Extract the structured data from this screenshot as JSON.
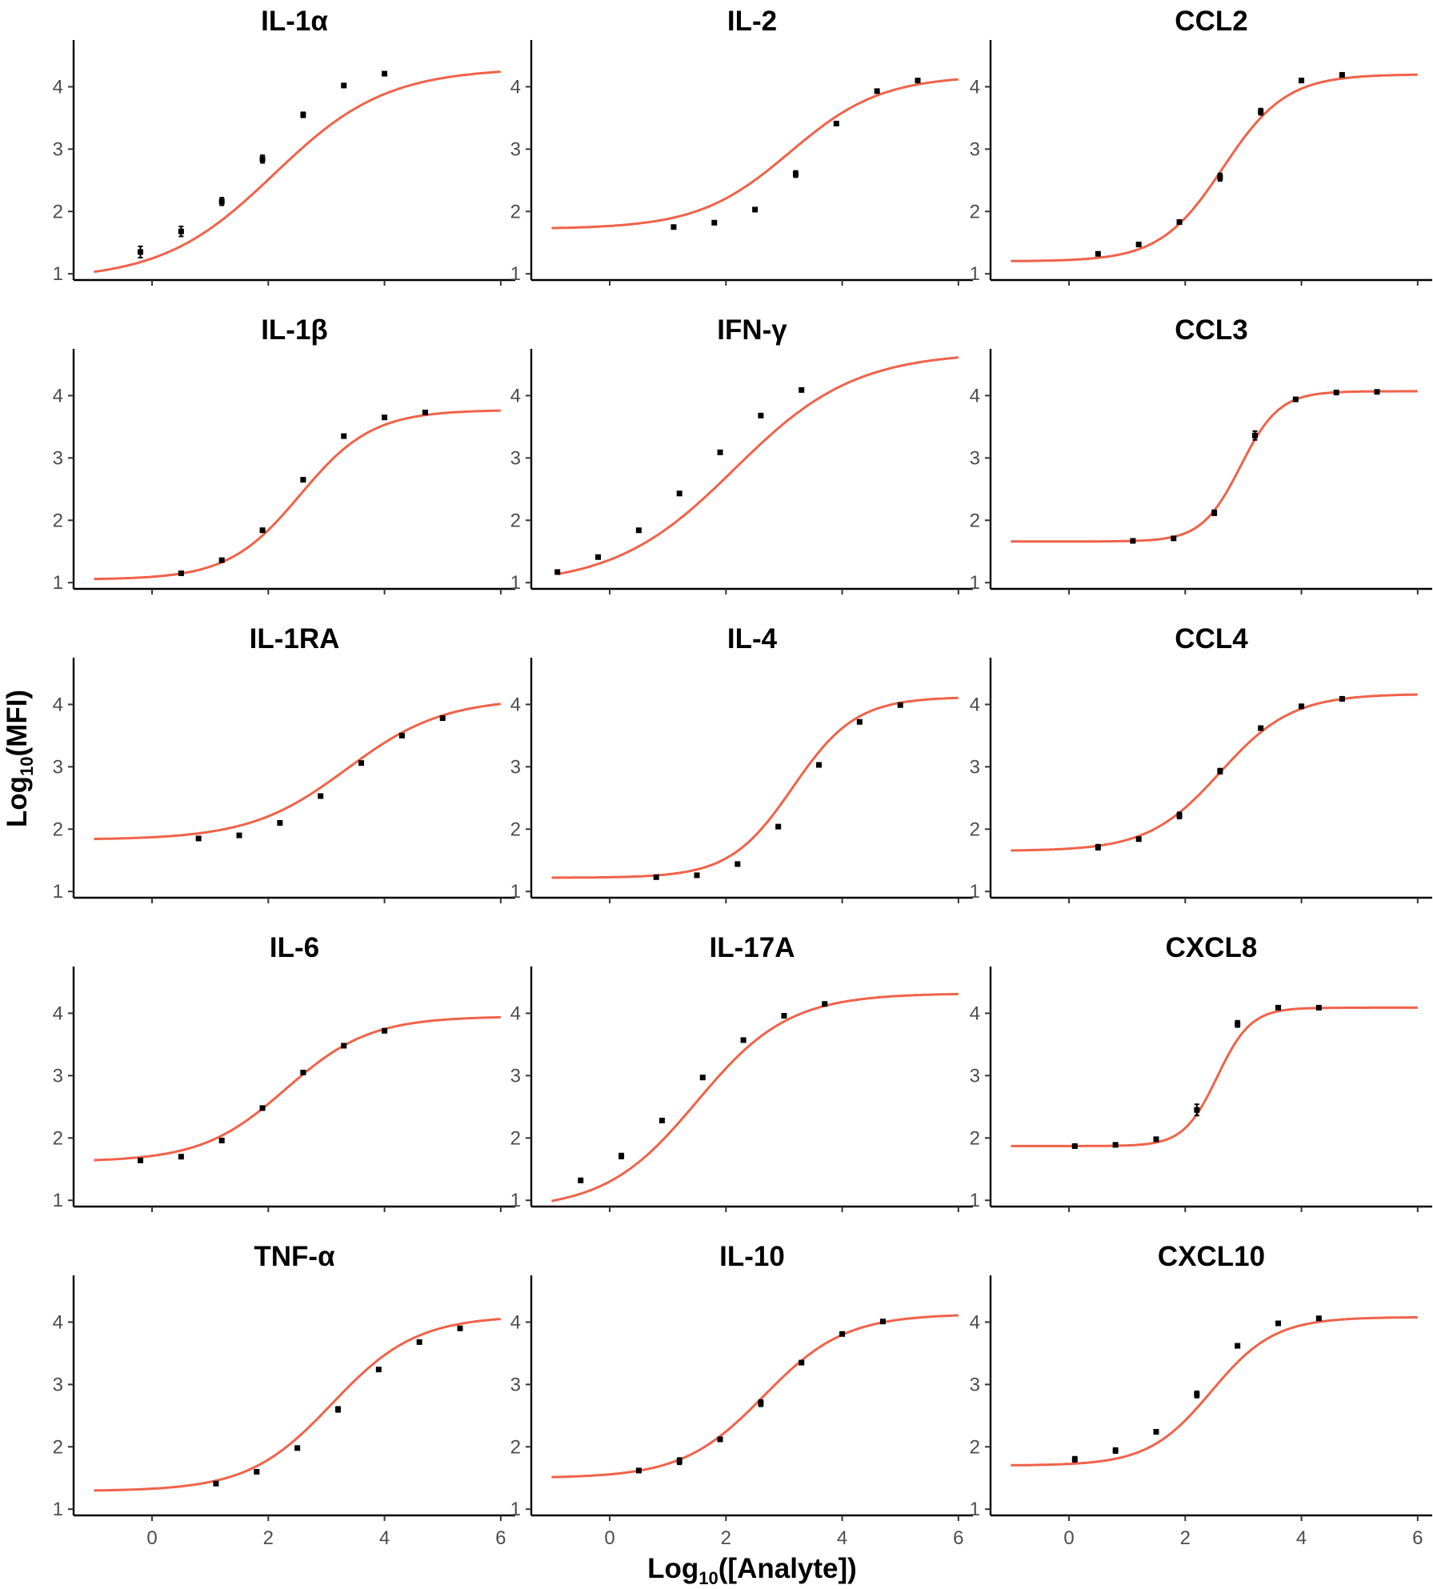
{
  "chart_data": {
    "type": "line",
    "layout": "facet grid, 5 rows x 3 columns",
    "xlabel_main": "Log",
    "xlabel_sub": "10",
    "xlabel_rest": "([Analyte])",
    "ylabel_main": "Log",
    "ylabel_sub": "10",
    "ylabel_rest": "(MFI)",
    "xlim": [
      -1.35,
      6.25
    ],
    "ylim": [
      0.9,
      4.75
    ],
    "x_ticks": [
      0,
      2,
      4,
      6
    ],
    "x_tick_labels": [
      "0",
      "2",
      "4",
      "6"
    ],
    "y_ticks": [
      1,
      2,
      3,
      4
    ],
    "y_tick_labels": [
      "1",
      "2",
      "3",
      "4"
    ],
    "line_color": "#f0624a",
    "point_color": "#000000",
    "panels": [
      {
        "title": "IL-1α",
        "fit": {
          "bottom": 0.9,
          "top": 4.3,
          "ec50": 2.1,
          "hill": 0.45,
          "x_start": -1.0,
          "x_end": 6.0
        },
        "points": [
          {
            "x": -0.2,
            "y": 1.35,
            "err": 0.09
          },
          {
            "x": 0.5,
            "y": 1.68,
            "err": 0.08
          },
          {
            "x": 1.2,
            "y": 2.16,
            "err": 0.06
          },
          {
            "x": 1.9,
            "y": 2.84,
            "err": 0.06
          },
          {
            "x": 2.6,
            "y": 3.55,
            "err": 0.04
          },
          {
            "x": 3.3,
            "y": 4.02,
            "err": 0.02
          },
          {
            "x": 4.0,
            "y": 4.21,
            "err": 0.02
          }
        ]
      },
      {
        "title": "IL-2",
        "fit": {
          "bottom": 1.72,
          "top": 4.18,
          "ec50": 3.1,
          "hill": 0.55,
          "x_start": -1.0,
          "x_end": 6.0
        },
        "points": [
          {
            "x": 1.1,
            "y": 1.75,
            "err": 0.02
          },
          {
            "x": 1.8,
            "y": 1.82,
            "err": 0.03
          },
          {
            "x": 2.5,
            "y": 2.03,
            "err": 0.03
          },
          {
            "x": 3.2,
            "y": 2.6,
            "err": 0.05
          },
          {
            "x": 3.9,
            "y": 3.41,
            "err": 0.03
          },
          {
            "x": 4.6,
            "y": 3.93,
            "err": 0.02
          },
          {
            "x": 5.3,
            "y": 4.1,
            "err": 0.02
          }
        ]
      },
      {
        "title": "CCL2",
        "fit": {
          "bottom": 1.2,
          "top": 4.2,
          "ec50": 2.65,
          "hill": 0.8,
          "x_start": -1.0,
          "x_end": 6.0
        },
        "points": [
          {
            "x": 0.5,
            "y": 1.32,
            "err": 0.02
          },
          {
            "x": 1.2,
            "y": 1.47,
            "err": 0.02
          },
          {
            "x": 1.9,
            "y": 1.83,
            "err": 0.03
          },
          {
            "x": 2.6,
            "y": 2.55,
            "err": 0.06
          },
          {
            "x": 3.3,
            "y": 3.6,
            "err": 0.05
          },
          {
            "x": 4.0,
            "y": 4.1,
            "err": 0.02
          },
          {
            "x": 4.7,
            "y": 4.19,
            "err": 0.03
          }
        ]
      },
      {
        "title": "IL-1β",
        "fit": {
          "bottom": 1.05,
          "top": 3.77,
          "ec50": 2.55,
          "hill": 0.7,
          "x_start": -1.0,
          "x_end": 6.0
        },
        "points": [
          {
            "x": 0.5,
            "y": 1.15,
            "err": 0.02
          },
          {
            "x": 1.2,
            "y": 1.36,
            "err": 0.02
          },
          {
            "x": 1.9,
            "y": 1.84,
            "err": 0.03
          },
          {
            "x": 2.6,
            "y": 2.65,
            "err": 0.03
          },
          {
            "x": 3.3,
            "y": 3.35,
            "err": 0.02
          },
          {
            "x": 4.0,
            "y": 3.65,
            "err": 0.02
          },
          {
            "x": 4.7,
            "y": 3.73,
            "err": 0.03
          }
        ]
      },
      {
        "title": "IFN-γ",
        "fit": {
          "bottom": 0.95,
          "top": 4.7,
          "ec50": 2.15,
          "hill": 0.42,
          "x_start": -0.9,
          "x_end": 6.0
        },
        "points": [
          {
            "x": -0.9,
            "y": 1.17,
            "err": 0.02
          },
          {
            "x": -0.2,
            "y": 1.41,
            "err": 0.02
          },
          {
            "x": 0.5,
            "y": 1.84,
            "err": 0.02
          },
          {
            "x": 1.2,
            "y": 2.43,
            "err": 0.03
          },
          {
            "x": 1.9,
            "y": 3.09,
            "err": 0.02
          },
          {
            "x": 2.6,
            "y": 3.68,
            "err": 0.02
          },
          {
            "x": 3.3,
            "y": 4.09,
            "err": 0.02
          }
        ]
      },
      {
        "title": "CCL3",
        "fit": {
          "bottom": 1.66,
          "top": 4.07,
          "ec50": 2.95,
          "hill": 1.3,
          "x_start": -1.0,
          "x_end": 6.0
        },
        "points": [
          {
            "x": 1.1,
            "y": 1.67,
            "err": 0.02
          },
          {
            "x": 1.8,
            "y": 1.71,
            "err": 0.02
          },
          {
            "x": 2.5,
            "y": 2.12,
            "err": 0.04
          },
          {
            "x": 3.2,
            "y": 3.36,
            "err": 0.07
          },
          {
            "x": 3.9,
            "y": 3.94,
            "err": 0.02
          },
          {
            "x": 4.6,
            "y": 4.05,
            "err": 0.02
          },
          {
            "x": 5.3,
            "y": 4.06,
            "err": 0.02
          }
        ]
      },
      {
        "title": "IL-1RA",
        "fit": {
          "bottom": 1.83,
          "top": 4.1,
          "ec50": 3.35,
          "hill": 0.52,
          "x_start": -1.0,
          "x_end": 6.0
        },
        "points": [
          {
            "x": 0.8,
            "y": 1.85,
            "err": 0.02
          },
          {
            "x": 1.5,
            "y": 1.9,
            "err": 0.03
          },
          {
            "x": 2.2,
            "y": 2.1,
            "err": 0.02
          },
          {
            "x": 2.9,
            "y": 2.53,
            "err": 0.03
          },
          {
            "x": 3.6,
            "y": 3.06,
            "err": 0.02
          },
          {
            "x": 4.3,
            "y": 3.5,
            "err": 0.02
          },
          {
            "x": 5.0,
            "y": 3.78,
            "err": 0.02
          }
        ]
      },
      {
        "title": "IL-4",
        "fit": {
          "bottom": 1.22,
          "top": 4.12,
          "ec50": 3.15,
          "hill": 0.8,
          "x_start": -1.0,
          "x_end": 6.0
        },
        "points": [
          {
            "x": 0.8,
            "y": 1.23,
            "err": 0.02
          },
          {
            "x": 1.5,
            "y": 1.26,
            "err": 0.02
          },
          {
            "x": 2.2,
            "y": 1.44,
            "err": 0.03
          },
          {
            "x": 2.9,
            "y": 2.04,
            "err": 0.03
          },
          {
            "x": 3.6,
            "y": 3.03,
            "err": 0.03
          },
          {
            "x": 4.3,
            "y": 3.72,
            "err": 0.02
          },
          {
            "x": 5.0,
            "y": 3.99,
            "err": 0.02
          }
        ]
      },
      {
        "title": "CCL4",
        "fit": {
          "bottom": 1.65,
          "top": 4.17,
          "ec50": 2.6,
          "hill": 0.7,
          "x_start": -1.0,
          "x_end": 6.0
        },
        "points": [
          {
            "x": 0.5,
            "y": 1.71,
            "err": 0.04
          },
          {
            "x": 1.2,
            "y": 1.84,
            "err": 0.02
          },
          {
            "x": 1.9,
            "y": 2.22,
            "err": 0.05
          },
          {
            "x": 2.6,
            "y": 2.93,
            "err": 0.04
          },
          {
            "x": 3.3,
            "y": 3.62,
            "err": 0.02
          },
          {
            "x": 4.0,
            "y": 3.97,
            "err": 0.02
          },
          {
            "x": 4.7,
            "y": 4.09,
            "err": 0.02
          }
        ]
      },
      {
        "title": "IL-6",
        "fit": {
          "bottom": 1.62,
          "top": 3.95,
          "ec50": 2.3,
          "hill": 0.6,
          "x_start": -1.0,
          "x_end": 6.0
        },
        "points": [
          {
            "x": -0.2,
            "y": 1.64,
            "err": 0.02
          },
          {
            "x": 0.5,
            "y": 1.7,
            "err": 0.02
          },
          {
            "x": 1.2,
            "y": 1.96,
            "err": 0.03
          },
          {
            "x": 1.9,
            "y": 2.48,
            "err": 0.03
          },
          {
            "x": 2.6,
            "y": 3.05,
            "err": 0.02
          },
          {
            "x": 3.3,
            "y": 3.48,
            "err": 0.03
          },
          {
            "x": 4.0,
            "y": 3.72,
            "err": 0.03
          }
        ]
      },
      {
        "title": "IL-17A",
        "fit": {
          "bottom": 0.85,
          "top": 4.32,
          "ec50": 1.5,
          "hill": 0.55,
          "x_start": -1.0,
          "x_end": 6.0
        },
        "points": [
          {
            "x": -0.5,
            "y": 1.32,
            "err": 0.03
          },
          {
            "x": 0.2,
            "y": 1.71,
            "err": 0.04
          },
          {
            "x": 0.9,
            "y": 2.28,
            "err": 0.02
          },
          {
            "x": 1.6,
            "y": 2.97,
            "err": 0.02
          },
          {
            "x": 2.3,
            "y": 3.57,
            "err": 0.02
          },
          {
            "x": 3.0,
            "y": 3.96,
            "err": 0.02
          },
          {
            "x": 3.7,
            "y": 4.15,
            "err": 0.02
          }
        ]
      },
      {
        "title": "CXCL8",
        "fit": {
          "bottom": 1.87,
          "top": 4.09,
          "ec50": 2.55,
          "hill": 1.5,
          "x_start": -1.0,
          "x_end": 6.0
        },
        "points": [
          {
            "x": 0.1,
            "y": 1.87,
            "err": 0.03
          },
          {
            "x": 0.8,
            "y": 1.89,
            "err": 0.03
          },
          {
            "x": 1.5,
            "y": 1.98,
            "err": 0.03
          },
          {
            "x": 2.2,
            "y": 2.45,
            "err": 0.09
          },
          {
            "x": 2.9,
            "y": 3.83,
            "err": 0.05
          },
          {
            "x": 3.6,
            "y": 4.09,
            "err": 0.02
          },
          {
            "x": 4.3,
            "y": 4.09,
            "err": 0.02
          }
        ]
      },
      {
        "title": "TNF-α",
        "fit": {
          "bottom": 1.29,
          "top": 4.1,
          "ec50": 3.1,
          "hill": 0.6,
          "x_start": -1.0,
          "x_end": 6.0
        },
        "points": [
          {
            "x": 1.1,
            "y": 1.41,
            "err": 0.02
          },
          {
            "x": 1.8,
            "y": 1.6,
            "err": 0.02
          },
          {
            "x": 2.5,
            "y": 1.98,
            "err": 0.02
          },
          {
            "x": 3.2,
            "y": 2.6,
            "err": 0.04
          },
          {
            "x": 3.9,
            "y": 3.24,
            "err": 0.02
          },
          {
            "x": 4.6,
            "y": 3.68,
            "err": 0.02
          },
          {
            "x": 5.3,
            "y": 3.9,
            "err": 0.02
          }
        ]
      },
      {
        "title": "IL-10",
        "fit": {
          "bottom": 1.5,
          "top": 4.13,
          "ec50": 2.65,
          "hill": 0.62,
          "x_start": -1.0,
          "x_end": 6.0
        },
        "points": [
          {
            "x": 0.5,
            "y": 1.62,
            "err": 0.03
          },
          {
            "x": 1.2,
            "y": 1.77,
            "err": 0.05
          },
          {
            "x": 1.9,
            "y": 2.12,
            "err": 0.03
          },
          {
            "x": 2.6,
            "y": 2.7,
            "err": 0.05
          },
          {
            "x": 3.3,
            "y": 3.35,
            "err": 0.02
          },
          {
            "x": 4.0,
            "y": 3.81,
            "err": 0.02
          },
          {
            "x": 4.7,
            "y": 4.01,
            "err": 0.02
          }
        ]
      },
      {
        "title": "CXCL10",
        "fit": {
          "bottom": 1.7,
          "top": 4.08,
          "ec50": 2.45,
          "hill": 0.8,
          "x_start": -1.0,
          "x_end": 6.0
        },
        "points": [
          {
            "x": 0.1,
            "y": 1.8,
            "err": 0.04
          },
          {
            "x": 0.8,
            "y": 1.94,
            "err": 0.04
          },
          {
            "x": 1.5,
            "y": 2.24,
            "err": 0.03
          },
          {
            "x": 2.2,
            "y": 2.84,
            "err": 0.05
          },
          {
            "x": 2.9,
            "y": 3.62,
            "err": 0.03
          },
          {
            "x": 3.6,
            "y": 3.98,
            "err": 0.02
          },
          {
            "x": 4.3,
            "y": 4.06,
            "err": 0.02
          }
        ]
      }
    ]
  }
}
